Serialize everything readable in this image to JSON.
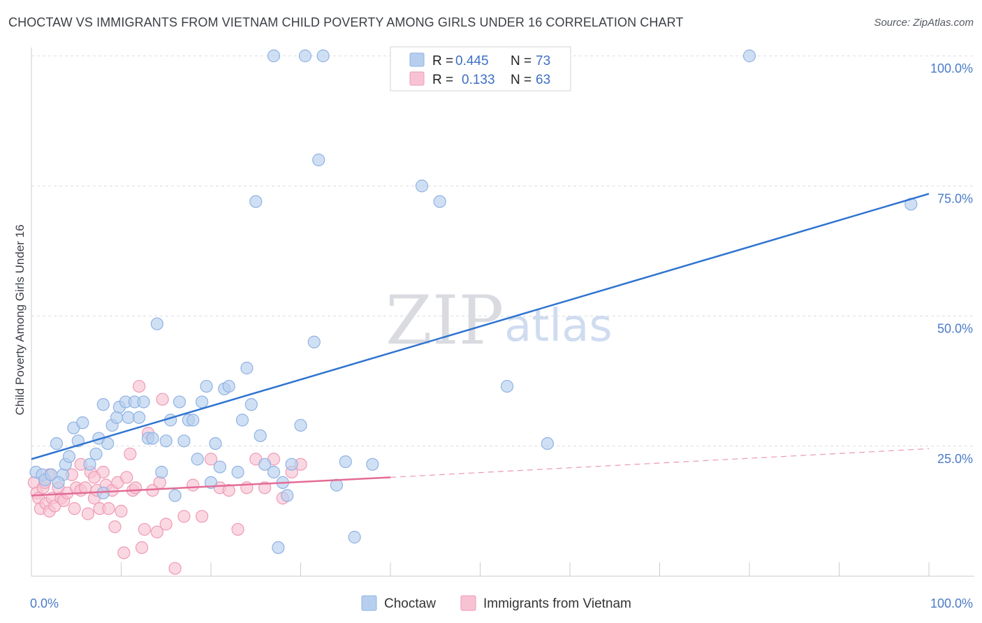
{
  "header": {
    "title": "CHOCTAW VS IMMIGRANTS FROM VIETNAM CHILD POVERTY AMONG GIRLS UNDER 16 CORRELATION CHART",
    "source": "Source: ZipAtlas.com"
  },
  "watermark": {
    "zip": "ZIP",
    "atlas": "atlas"
  },
  "legend": {
    "rows": [
      {
        "r_label": "R =",
        "r_value": "0.445",
        "n_label": "N =",
        "n_value": "73",
        "color": "#a9c6ee"
      },
      {
        "r_label": "R =",
        "r_value": "0.133",
        "n_label": "N =",
        "n_value": "63",
        "color": "#f5b8cb"
      }
    ]
  },
  "bottom_legend": {
    "items": [
      "Choctaw",
      "Immigrants from Vietnam"
    ]
  },
  "colors": {
    "choctaw_fill": "#b7cfee",
    "choctaw_stroke": "#8fb2e3",
    "choctaw_line": "#2f74d0",
    "vietnam_fill": "#f7c3d3",
    "vietnam_stroke": "#ef9ab5",
    "vietnam_line": "#e36c96",
    "tick_text": "#4a7bc8",
    "grid": "#dcdcdc"
  },
  "chart_data": {
    "type": "scatter",
    "title": "CHOCTAW VS IMMIGRANTS FROM VIETNAM CHILD POVERTY AMONG GIRLS UNDER 16 CORRELATION CHART",
    "xlabel": "",
    "ylabel": "Child Poverty Among Girls Under 16",
    "xlim": [
      0,
      100
    ],
    "ylim": [
      0,
      100
    ],
    "x_tick_labels": [
      "0.0%",
      "100.0%"
    ],
    "y_ticks": [
      25,
      50,
      75,
      100
    ],
    "y_tick_labels": [
      "25.0%",
      "50.0%",
      "75.0%",
      "100.0%"
    ],
    "grid": true,
    "legend_position": "top-center",
    "series": [
      {
        "name": "Choctaw",
        "R": 0.445,
        "N": 73,
        "trend": {
          "x": [
            0,
            100
          ],
          "y": [
            22.5,
            73.5
          ],
          "dashed_from_x": null
        },
        "points": [
          [
            0.5,
            20
          ],
          [
            1.2,
            19.5
          ],
          [
            1.5,
            18.5
          ],
          [
            2.2,
            19.5
          ],
          [
            2.8,
            25.5
          ],
          [
            3.5,
            19.5
          ],
          [
            3.8,
            21.5
          ],
          [
            4.2,
            23
          ],
          [
            4.7,
            28.5
          ],
          [
            5.2,
            26
          ],
          [
            5.7,
            29.5
          ],
          [
            6.5,
            21.5
          ],
          [
            7.2,
            23.5
          ],
          [
            7.5,
            26.5
          ],
          [
            8,
            33
          ],
          [
            8.5,
            25.5
          ],
          [
            9,
            29
          ],
          [
            9.5,
            30.5
          ],
          [
            9.8,
            32.5
          ],
          [
            10.5,
            33.5
          ],
          [
            10.8,
            30.5
          ],
          [
            11.5,
            33.5
          ],
          [
            12,
            30.5
          ],
          [
            12.5,
            33.5
          ],
          [
            13,
            26.5
          ],
          [
            13.5,
            26.5
          ],
          [
            14,
            48.5
          ],
          [
            14.5,
            20
          ],
          [
            15,
            26
          ],
          [
            15.5,
            30
          ],
          [
            16,
            15.5
          ],
          [
            16.5,
            33.5
          ],
          [
            17,
            26
          ],
          [
            17.5,
            30
          ],
          [
            18,
            30
          ],
          [
            18.5,
            22.5
          ],
          [
            19,
            33.5
          ],
          [
            19.5,
            36.5
          ],
          [
            20,
            18
          ],
          [
            20.5,
            25.5
          ],
          [
            21,
            21
          ],
          [
            21.5,
            36
          ],
          [
            22,
            36.5
          ],
          [
            23,
            20
          ],
          [
            23.5,
            30
          ],
          [
            24,
            40
          ],
          [
            24.5,
            33
          ],
          [
            25,
            72
          ],
          [
            25.5,
            27
          ],
          [
            26,
            21.5
          ],
          [
            27,
            20
          ],
          [
            27.5,
            5.5
          ],
          [
            28,
            18
          ],
          [
            28.5,
            15.5
          ],
          [
            29,
            21.5
          ],
          [
            30,
            29
          ],
          [
            30.5,
            100
          ],
          [
            31.5,
            45
          ],
          [
            32,
            80
          ],
          [
            32.5,
            100
          ],
          [
            34,
            17.5
          ],
          [
            35,
            22
          ],
          [
            36,
            7.5
          ],
          [
            38,
            21.5
          ],
          [
            43.5,
            75
          ],
          [
            45.5,
            72
          ],
          [
            53,
            36.5
          ],
          [
            57.5,
            25.5
          ],
          [
            80,
            100
          ],
          [
            98,
            71.5
          ],
          [
            27,
            100
          ],
          [
            8,
            16
          ],
          [
            3,
            18
          ]
        ]
      },
      {
        "name": "Immigrants from Vietnam",
        "R": 0.133,
        "N": 63,
        "trend": {
          "x": [
            0,
            40
          ],
          "y": [
            15.5,
            19
          ],
          "dashed_to": [
            100,
            24.5
          ]
        },
        "points": [
          [
            0.3,
            18
          ],
          [
            0.6,
            16
          ],
          [
            0.8,
            15
          ],
          [
            1,
            13
          ],
          [
            1.3,
            17
          ],
          [
            1.6,
            14
          ],
          [
            2,
            12.5
          ],
          [
            2.3,
            15
          ],
          [
            2.6,
            13.5
          ],
          [
            3,
            17
          ],
          [
            3.3,
            15
          ],
          [
            3.6,
            14.5
          ],
          [
            4,
            16
          ],
          [
            4.5,
            19.5
          ],
          [
            4.8,
            13
          ],
          [
            5,
            17
          ],
          [
            5.5,
            16.5
          ],
          [
            6,
            17
          ],
          [
            6.3,
            12
          ],
          [
            6.6,
            20
          ],
          [
            7,
            15
          ],
          [
            7.3,
            16.5
          ],
          [
            7.6,
            13
          ],
          [
            8,
            20
          ],
          [
            8.3,
            17.5
          ],
          [
            8.6,
            13
          ],
          [
            9,
            16.5
          ],
          [
            9.3,
            9.5
          ],
          [
            9.6,
            18
          ],
          [
            10,
            12.5
          ],
          [
            10.3,
            4.5
          ],
          [
            10.6,
            19
          ],
          [
            11,
            23.5
          ],
          [
            11.3,
            16.5
          ],
          [
            11.6,
            17
          ],
          [
            12,
            36.5
          ],
          [
            12.3,
            5.5
          ],
          [
            12.6,
            9
          ],
          [
            13,
            27.5
          ],
          [
            13.5,
            16.5
          ],
          [
            14,
            8.5
          ],
          [
            14.3,
            18
          ],
          [
            14.6,
            34
          ],
          [
            15,
            10
          ],
          [
            16,
            1.5
          ],
          [
            17,
            11.5
          ],
          [
            18,
            17.5
          ],
          [
            19,
            11.5
          ],
          [
            20,
            22.5
          ],
          [
            21,
            17
          ],
          [
            22,
            16.5
          ],
          [
            23,
            9
          ],
          [
            24,
            17
          ],
          [
            25,
            22.5
          ],
          [
            26,
            17
          ],
          [
            27,
            22.5
          ],
          [
            28,
            15
          ],
          [
            29,
            20
          ],
          [
            30,
            21.5
          ],
          [
            2,
            19.5
          ],
          [
            1.5,
            18
          ],
          [
            5.5,
            21.5
          ],
          [
            7,
            19
          ]
        ]
      }
    ]
  }
}
